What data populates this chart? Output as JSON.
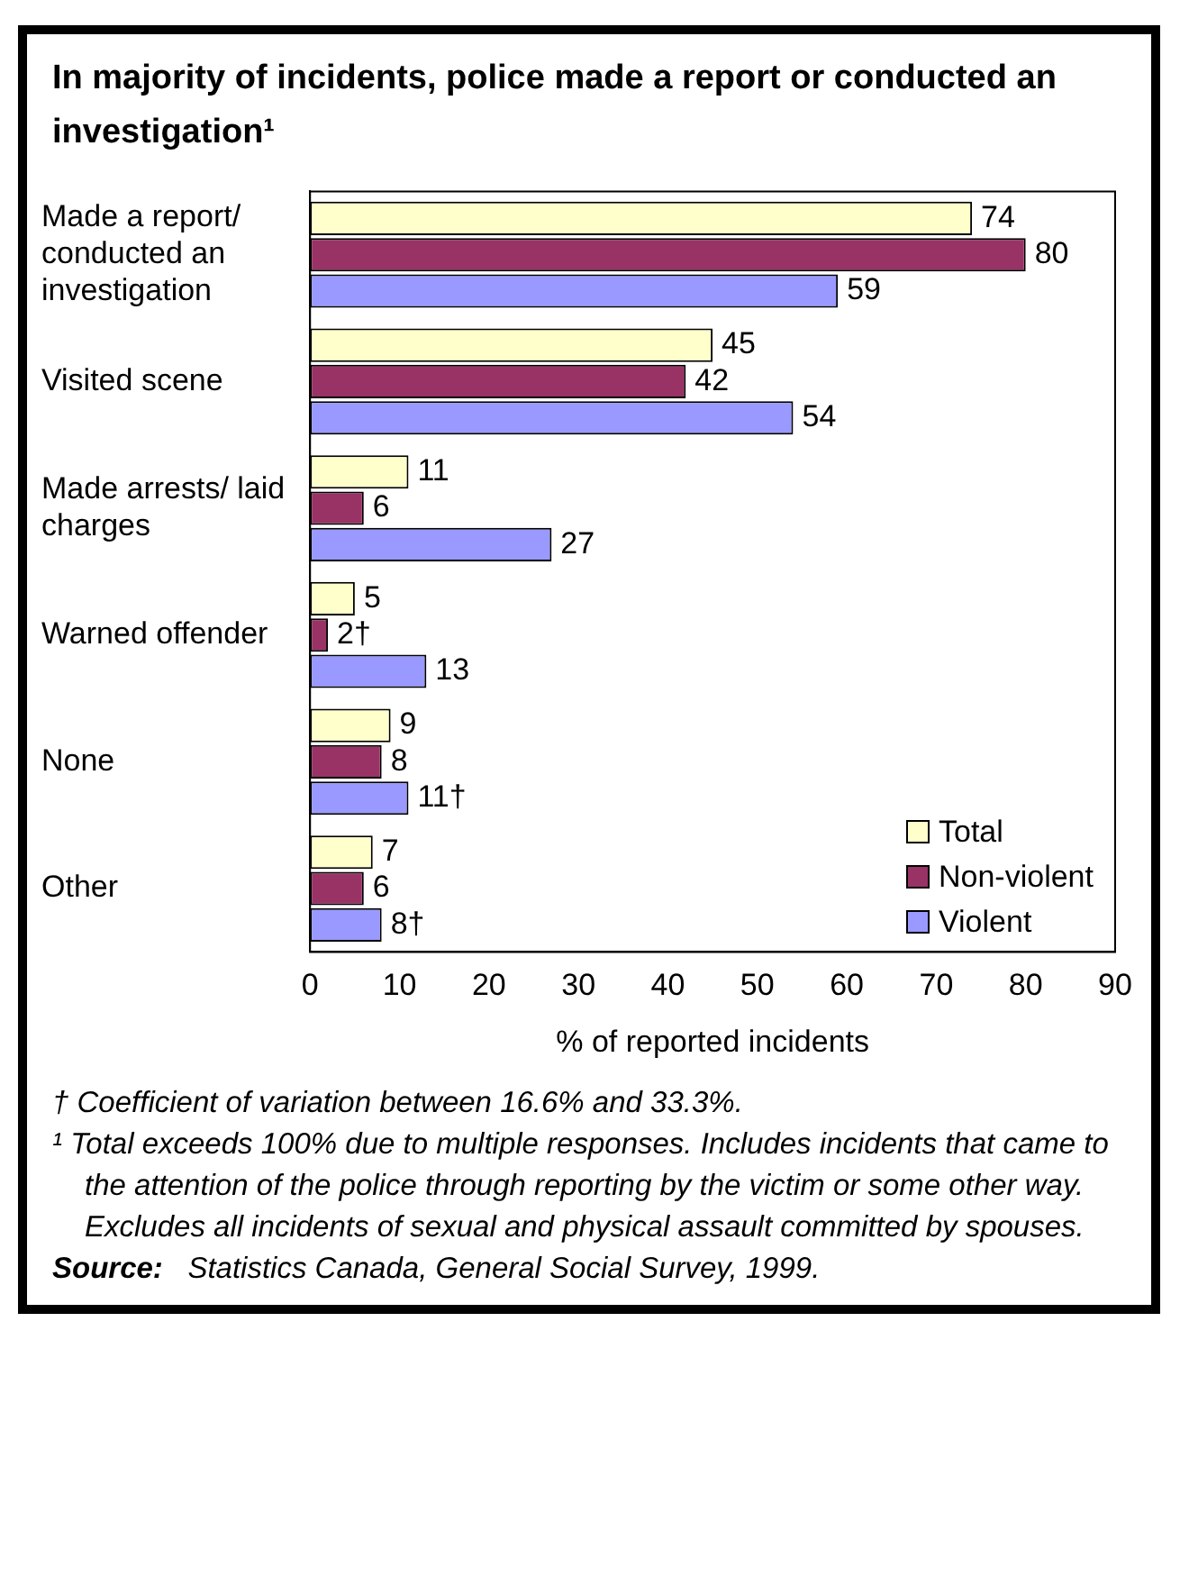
{
  "chart_data": {
    "type": "bar",
    "orientation": "horizontal",
    "title": "In majority of incidents, police made a report or conducted an investigation¹",
    "xlabel": "% of reported incidents",
    "categories": [
      "Made a report/ conducted an investigation",
      "Visited scene",
      "Made arrests/ laid charges",
      "Warned offender",
      "None",
      "Other"
    ],
    "series": [
      {
        "name": "Total",
        "color": "#ffffcc",
        "values": [
          74,
          45,
          11,
          5,
          9,
          7
        ],
        "value_labels": [
          "74",
          "45",
          "11",
          "5",
          "9",
          "7"
        ]
      },
      {
        "name": "Non-violent",
        "color": "#993366",
        "values": [
          80,
          42,
          6,
          2,
          8,
          6
        ],
        "value_labels": [
          "80",
          "42",
          "6",
          "2†",
          "8",
          "6"
        ]
      },
      {
        "name": "Violent",
        "color": "#9999ff",
        "values": [
          59,
          54,
          27,
          13,
          11,
          8
        ],
        "value_labels": [
          "59",
          "54",
          "27",
          "13",
          "11†",
          "8†"
        ]
      }
    ],
    "xlim": [
      0,
      90
    ],
    "xticks": [
      0,
      10,
      20,
      30,
      40,
      50,
      60,
      70,
      80,
      90
    ],
    "grid": false,
    "legend": "bottom right",
    "annotations": [
      "† Coefficient of variation between 16.6% and 33.3%.",
      "¹ Total exceeds 100% due to multiple responses. Includes incidents that came to the attention of the police through reporting by the victim or some other way. Excludes all incidents of sexual and physical assault committed by spouses.",
      "Source: Statistics Canada, General Social Survey, 1999."
    ]
  }
}
